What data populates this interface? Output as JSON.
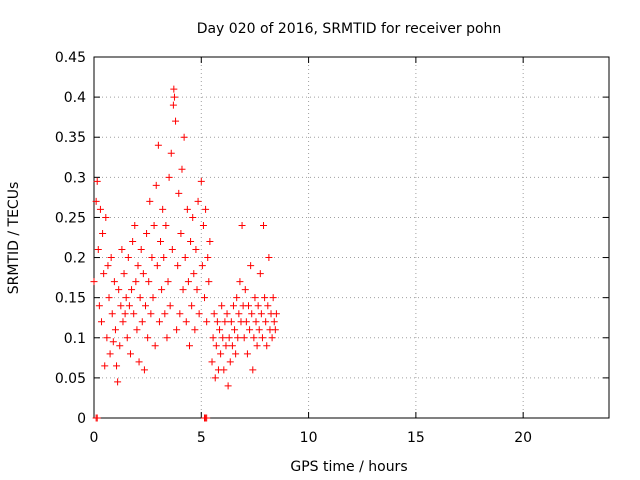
{
  "chart_data": {
    "type": "scatter",
    "title": "Day 020 of 2016, SRMTID for receiver pohn",
    "xlabel": "GPS time / hours",
    "ylabel": "SRMTID / TECUs",
    "xlim": [
      0,
      24
    ],
    "ylim": [
      0,
      0.45
    ],
    "grid": true,
    "marker": "+",
    "color": "#ff0000",
    "xticks": [
      {
        "value": 0,
        "label": "0"
      },
      {
        "value": 5,
        "label": "5"
      },
      {
        "value": 10,
        "label": "10"
      },
      {
        "value": 15,
        "label": "15"
      },
      {
        "value": 20,
        "label": "20"
      }
    ],
    "yticks": [
      {
        "value": 0,
        "label": "0"
      },
      {
        "value": 0.05,
        "label": "0.05"
      },
      {
        "value": 0.1,
        "label": "0.1"
      },
      {
        "value": 0.15,
        "label": "0.15"
      },
      {
        "value": 0.2,
        "label": "0.2"
      },
      {
        "value": 0.25,
        "label": "0.25"
      },
      {
        "value": 0.3,
        "label": "0.3"
      },
      {
        "value": 0.35,
        "label": "0.35"
      },
      {
        "value": 0.4,
        "label": "0.4"
      },
      {
        "value": 0.45,
        "label": "0.45"
      }
    ],
    "series": [
      {
        "name": "SRMTID",
        "points": [
          [
            0.0,
            0.17
          ],
          [
            0.1,
            0.27
          ],
          [
            0.15,
            0.295
          ],
          [
            0.2,
            0.21
          ],
          [
            0.25,
            0.14
          ],
          [
            0.3,
            0.26
          ],
          [
            0.35,
            0.12
          ],
          [
            0.4,
            0.23
          ],
          [
            0.45,
            0.18
          ],
          [
            0.5,
            0.065
          ],
          [
            0.55,
            0.25
          ],
          [
            0.6,
            0.1
          ],
          [
            0.65,
            0.19
          ],
          [
            0.7,
            0.15
          ],
          [
            0.75,
            0.08
          ],
          [
            0.8,
            0.2
          ],
          [
            0.85,
            0.13
          ],
          [
            0.9,
            0.095
          ],
          [
            0.95,
            0.17
          ],
          [
            1.0,
            0.11
          ],
          [
            1.05,
            0.065
          ],
          [
            1.1,
            0.045
          ],
          [
            1.15,
            0.16
          ],
          [
            1.2,
            0.09
          ],
          [
            1.25,
            0.14
          ],
          [
            1.3,
            0.21
          ],
          [
            1.35,
            0.12
          ],
          [
            1.4,
            0.18
          ],
          [
            1.45,
            0.13
          ],
          [
            1.5,
            0.15
          ],
          [
            1.55,
            0.1
          ],
          [
            1.6,
            0.2
          ],
          [
            1.65,
            0.14
          ],
          [
            1.7,
            0.08
          ],
          [
            1.75,
            0.16
          ],
          [
            1.8,
            0.22
          ],
          [
            1.85,
            0.13
          ],
          [
            1.9,
            0.24
          ],
          [
            1.95,
            0.17
          ],
          [
            2.0,
            0.11
          ],
          [
            2.05,
            0.19
          ],
          [
            2.1,
            0.07
          ],
          [
            2.15,
            0.15
          ],
          [
            2.2,
            0.21
          ],
          [
            2.25,
            0.12
          ],
          [
            2.3,
            0.18
          ],
          [
            2.35,
            0.06
          ],
          [
            2.4,
            0.14
          ],
          [
            2.45,
            0.23
          ],
          [
            2.5,
            0.1
          ],
          [
            2.55,
            0.17
          ],
          [
            2.6,
            0.27
          ],
          [
            2.65,
            0.13
          ],
          [
            2.7,
            0.2
          ],
          [
            2.75,
            0.15
          ],
          [
            2.8,
            0.24
          ],
          [
            2.85,
            0.09
          ],
          [
            2.9,
            0.29
          ],
          [
            2.95,
            0.19
          ],
          [
            3.0,
            0.34
          ],
          [
            3.05,
            0.12
          ],
          [
            3.1,
            0.22
          ],
          [
            3.15,
            0.16
          ],
          [
            3.2,
            0.26
          ],
          [
            3.25,
            0.2
          ],
          [
            3.3,
            0.13
          ],
          [
            3.35,
            0.24
          ],
          [
            3.4,
            0.1
          ],
          [
            3.45,
            0.17
          ],
          [
            3.5,
            0.3
          ],
          [
            3.55,
            0.14
          ],
          [
            3.6,
            0.33
          ],
          [
            3.65,
            0.21
          ],
          [
            3.7,
            0.39
          ],
          [
            3.72,
            0.41
          ],
          [
            3.75,
            0.4
          ],
          [
            3.8,
            0.37
          ],
          [
            3.85,
            0.11
          ],
          [
            3.9,
            0.19
          ],
          [
            3.95,
            0.28
          ],
          [
            4.0,
            0.13
          ],
          [
            4.05,
            0.23
          ],
          [
            4.1,
            0.31
          ],
          [
            4.15,
            0.16
          ],
          [
            4.2,
            0.35
          ],
          [
            4.25,
            0.2
          ],
          [
            4.3,
            0.12
          ],
          [
            4.35,
            0.26
          ],
          [
            4.4,
            0.17
          ],
          [
            4.45,
            0.09
          ],
          [
            4.5,
            0.22
          ],
          [
            4.55,
            0.14
          ],
          [
            4.6,
            0.25
          ],
          [
            4.65,
            0.18
          ],
          [
            4.7,
            0.11
          ],
          [
            4.75,
            0.21
          ],
          [
            4.8,
            0.16
          ],
          [
            4.85,
            0.27
          ],
          [
            4.9,
            0.13
          ],
          [
            5.0,
            0.295
          ],
          [
            5.05,
            0.19
          ],
          [
            5.1,
            0.24
          ],
          [
            5.15,
            0.15
          ],
          [
            5.2,
            0.26
          ],
          [
            5.25,
            0.12
          ],
          [
            5.3,
            0.2
          ],
          [
            5.35,
            0.17
          ],
          [
            5.4,
            0.22
          ],
          [
            5.5,
            0.07
          ],
          [
            5.55,
            0.1
          ],
          [
            5.6,
            0.13
          ],
          [
            5.65,
            0.05
          ],
          [
            5.7,
            0.09
          ],
          [
            5.75,
            0.12
          ],
          [
            5.8,
            0.06
          ],
          [
            5.85,
            0.11
          ],
          [
            5.9,
            0.08
          ],
          [
            5.95,
            0.14
          ],
          [
            6.0,
            0.1
          ],
          [
            6.05,
            0.06
          ],
          [
            6.1,
            0.12
          ],
          [
            6.15,
            0.09
          ],
          [
            6.2,
            0.13
          ],
          [
            6.25,
            0.04
          ],
          [
            6.3,
            0.1
          ],
          [
            6.35,
            0.07
          ],
          [
            6.4,
            0.12
          ],
          [
            6.45,
            0.09
          ],
          [
            6.5,
            0.14
          ],
          [
            6.55,
            0.11
          ],
          [
            6.6,
            0.08
          ],
          [
            6.65,
            0.15
          ],
          [
            6.7,
            0.1
          ],
          [
            6.75,
            0.13
          ],
          [
            6.8,
            0.17
          ],
          [
            6.85,
            0.12
          ],
          [
            6.9,
            0.24
          ],
          [
            6.95,
            0.14
          ],
          [
            7.0,
            0.1
          ],
          [
            7.05,
            0.16
          ],
          [
            7.1,
            0.12
          ],
          [
            7.15,
            0.08
          ],
          [
            7.2,
            0.14
          ],
          [
            7.25,
            0.11
          ],
          [
            7.3,
            0.19
          ],
          [
            7.35,
            0.13
          ],
          [
            7.4,
            0.06
          ],
          [
            7.45,
            0.1
          ],
          [
            7.5,
            0.15
          ],
          [
            7.55,
            0.12
          ],
          [
            7.6,
            0.09
          ],
          [
            7.65,
            0.14
          ],
          [
            7.7,
            0.11
          ],
          [
            7.75,
            0.18
          ],
          [
            7.8,
            0.13
          ],
          [
            7.85,
            0.1
          ],
          [
            7.9,
            0.24
          ],
          [
            7.95,
            0.15
          ],
          [
            8.0,
            0.12
          ],
          [
            8.05,
            0.09
          ],
          [
            8.1,
            0.14
          ],
          [
            8.15,
            0.2
          ],
          [
            8.2,
            0.11
          ],
          [
            8.25,
            0.13
          ],
          [
            8.3,
            0.1
          ],
          [
            8.35,
            0.15
          ],
          [
            8.4,
            0.12
          ],
          [
            8.45,
            0.11
          ],
          [
            8.5,
            0.13
          ],
          [
            0.1,
            0.0
          ],
          [
            0.15,
            0.0
          ],
          [
            5.15,
            0.0
          ],
          [
            5.2,
            0.0
          ],
          [
            5.25,
            0.0
          ]
        ]
      }
    ]
  }
}
